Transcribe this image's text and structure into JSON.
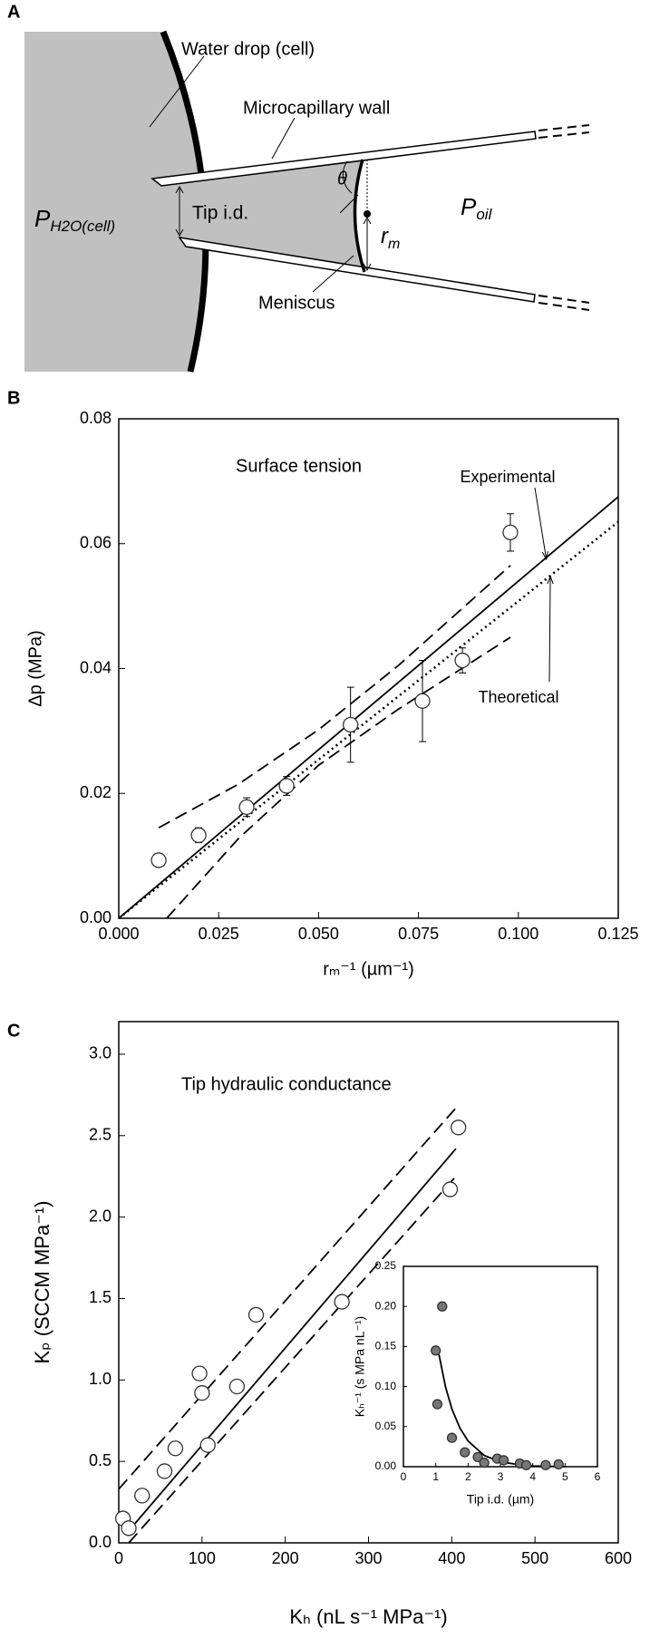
{
  "diagram": {
    "panel_label": "A",
    "labels": {
      "water_drop": "Water drop (cell)",
      "wall": "Microcapillary wall",
      "tip": "Tip i.d.",
      "theta": "θ",
      "meniscus": "Meniscus"
    },
    "p_cell": {
      "main": "P",
      "sub": "H2O(cell)"
    },
    "p_oil": {
      "main": "P",
      "sub": "oil"
    },
    "r_m": {
      "main": "r",
      "sub": "m"
    }
  },
  "chart_data": [
    {
      "type": "scatter",
      "panel_label": "B",
      "title": "Surface tension",
      "xlabel": "rₘ⁻¹ (µm⁻¹)",
      "ylabel": "Δp (MPa)",
      "xlim": [
        0,
        0.125
      ],
      "ylim": [
        0,
        0.08
      ],
      "xticks": [
        {
          "value": 0,
          "label": "0.000"
        },
        {
          "value": 0.025,
          "label": "0.025"
        },
        {
          "value": 0.05,
          "label": "0.050"
        },
        {
          "value": 0.075,
          "label": "0.075"
        },
        {
          "value": 0.1,
          "label": "0.100"
        },
        {
          "value": 0.125,
          "label": "0.125"
        }
      ],
      "yticks": [
        {
          "value": 0,
          "label": "0.00"
        },
        {
          "value": 0.02,
          "label": "0.02"
        },
        {
          "value": 0.04,
          "label": "0.04"
        },
        {
          "value": 0.06,
          "label": "0.06"
        },
        {
          "value": 0.08,
          "label": "0.08"
        }
      ],
      "points": {
        "x": [
          0.01,
          0.02,
          0.032,
          0.042,
          0.058,
          0.076,
          0.086,
          0.098
        ],
        "values": [
          0.0093,
          0.0133,
          0.0178,
          0.0212,
          0.031,
          0.0348,
          0.0413,
          0.0618
        ],
        "errors": [
          0.001,
          0.0012,
          0.0015,
          0.0015,
          0.006,
          0.0065,
          0.002,
          0.003
        ],
        "fill": "#ffffff"
      },
      "lines": [
        {
          "style": "solid",
          "x": [
            0,
            0.125
          ],
          "values": [
            0,
            0.0675
          ]
        },
        {
          "style": "dotted",
          "x": [
            0,
            0.125
          ],
          "values": [
            0,
            0.0635
          ]
        },
        {
          "style": "dashed",
          "x": [
            0.01,
            0.03,
            0.05,
            0.07,
            0.098
          ],
          "values": [
            0.0145,
            0.0215,
            0.0302,
            0.0405,
            0.0565
          ]
        },
        {
          "style": "dashed",
          "x": [
            0.012,
            0.03,
            0.05,
            0.07,
            0.098
          ],
          "values": [
            0,
            0.0128,
            0.0245,
            0.0335,
            0.045
          ]
        }
      ],
      "annotations": [
        "Experimental",
        "Theoretical"
      ]
    },
    {
      "type": "scatter",
      "panel_label": "C",
      "title": "Tip hydraulic conductance",
      "xlabel": "Kₕ (nL s⁻¹ MPa⁻¹)",
      "ylabel": "Kₚ (SCCM MPa⁻¹)",
      "xlim": [
        0,
        600
      ],
      "ylim": [
        0,
        3.2
      ],
      "xticks": [
        0,
        100,
        200,
        300,
        400,
        500,
        600
      ],
      "yticks": [
        {
          "value": 0,
          "label": "0.0"
        },
        {
          "value": 0.5,
          "label": "0.5"
        },
        {
          "value": 1,
          "label": "1.0"
        },
        {
          "value": 1.5,
          "label": "1.5"
        },
        {
          "value": 2,
          "label": "2.0"
        },
        {
          "value": 2.5,
          "label": "2.5"
        },
        {
          "value": 3,
          "label": "3.0"
        }
      ],
      "points": {
        "x": [
          5,
          12,
          28,
          55,
          68,
          97,
          100,
          107,
          142,
          165,
          268,
          398,
          408
        ],
        "values": [
          0.15,
          0.09,
          0.29,
          0.44,
          0.58,
          1.04,
          0.92,
          0.6,
          0.96,
          1.4,
          1.48,
          2.17,
          2.55
        ],
        "fill": "#ffffff"
      },
      "lines": [
        {
          "style": "solid",
          "x": [
            8,
            405
          ],
          "values": [
            0.05,
            2.42
          ]
        },
        {
          "style": "dashed",
          "x": [
            0,
            405
          ],
          "values": [
            0.33,
            2.67
          ]
        },
        {
          "style": "dashed",
          "x": [
            12,
            405
          ],
          "values": [
            0,
            2.25
          ]
        }
      ]
    },
    {
      "type": "scatter",
      "xlabel": "Tip i.d. (µm)",
      "ylabel": "Kₕ⁻¹ (s MPa nL⁻¹)",
      "xlim": [
        0,
        6
      ],
      "ylim": [
        0,
        0.25
      ],
      "xticks": [
        0,
        1,
        2,
        3,
        4,
        5,
        6
      ],
      "yticks": [
        {
          "value": 0,
          "label": "0.00"
        },
        {
          "value": 0.05,
          "label": "0.05"
        },
        {
          "value": 0.1,
          "label": "0.10"
        },
        {
          "value": 0.15,
          "label": "0.15"
        },
        {
          "value": 0.2,
          "label": "0.20"
        },
        {
          "value": 0.25,
          "label": "0.25"
        }
      ],
      "points": {
        "x": [
          1.0,
          1.2,
          1.05,
          1.5,
          1.9,
          2.3,
          2.5,
          2.9,
          3.1,
          3.6,
          3.8,
          4.4,
          4.8
        ],
        "values": [
          0.145,
          0.2,
          0.078,
          0.036,
          0.018,
          0.012,
          0.005,
          0.01,
          0.008,
          0.004,
          0.002,
          0.002,
          0.003
        ],
        "fill": "#777777"
      },
      "lines": [
        {
          "style": "solid",
          "x": [
            1.1,
            1.3,
            1.5,
            1.75,
            2,
            2.5,
            3,
            3.5,
            4,
            5
          ],
          "values": [
            0.14,
            0.1,
            0.072,
            0.048,
            0.032,
            0.014,
            0.006,
            0.003,
            0.001,
            0
          ]
        }
      ]
    }
  ]
}
